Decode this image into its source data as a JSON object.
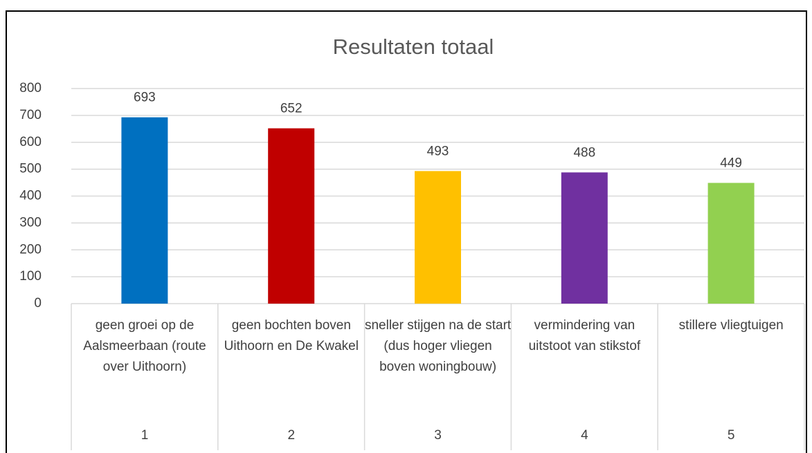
{
  "chart_data": {
    "type": "bar",
    "title": "Resultaten totaal",
    "categories": [
      "geen groei op de Aalsmeerbaan (route over Uithoorn)",
      "geen bochten boven Uithoorn en De Kwakel",
      "sneller stijgen na de start (dus hoger vliegen boven woningbouw)",
      "vermindering van uitstoot van stikstof",
      "stillere vliegtuigen"
    ],
    "category_groups": [
      "1",
      "2",
      "3",
      "4",
      "5"
    ],
    "values": [
      693,
      652,
      493,
      488,
      449
    ],
    "colors": [
      "#0070c0",
      "#c00000",
      "#ffc000",
      "#7030a0",
      "#92d050"
    ],
    "ylim": [
      0,
      800
    ],
    "yticks": [
      0,
      100,
      200,
      300,
      400,
      500,
      600,
      700,
      800
    ],
    "grid": true
  }
}
